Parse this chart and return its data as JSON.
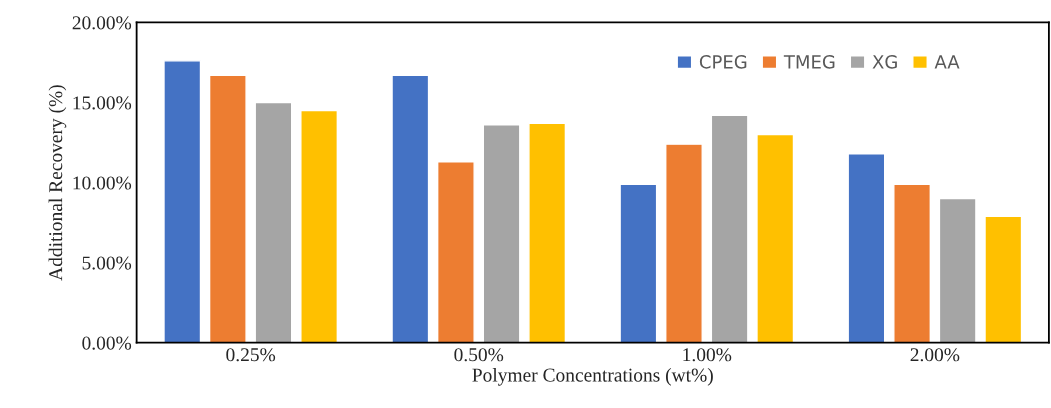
{
  "chart_data": {
    "type": "bar",
    "xlabel": "Polymer Concentrations (wt%)",
    "ylabel": "Additional Recovery (%)",
    "categories": [
      "0.25%",
      "0.50%",
      "1.00%",
      "2.00%"
    ],
    "series": [
      {
        "name": "CPEG",
        "color": "#4472c4",
        "values": [
          17.6,
          16.7,
          9.9,
          11.8
        ]
      },
      {
        "name": "TMEG",
        "color": "#ed7d31",
        "values": [
          16.7,
          11.3,
          12.4,
          9.9
        ]
      },
      {
        "name": "XG",
        "color": "#a5a5a5",
        "values": [
          15.0,
          13.6,
          14.2,
          9.0
        ]
      },
      {
        "name": "AA",
        "color": "#ffc000",
        "values": [
          14.5,
          13.7,
          13.0,
          7.9
        ]
      }
    ],
    "ylim": [
      0,
      20
    ],
    "yticks": [
      {
        "value": 0,
        "label": "0.00%"
      },
      {
        "value": 5,
        "label": "5.00%"
      },
      {
        "value": 10,
        "label": "10.00%"
      },
      {
        "value": 15,
        "label": "15.00%"
      },
      {
        "value": 20,
        "label": "20.00%"
      }
    ],
    "grid": false,
    "legend": "top right"
  }
}
